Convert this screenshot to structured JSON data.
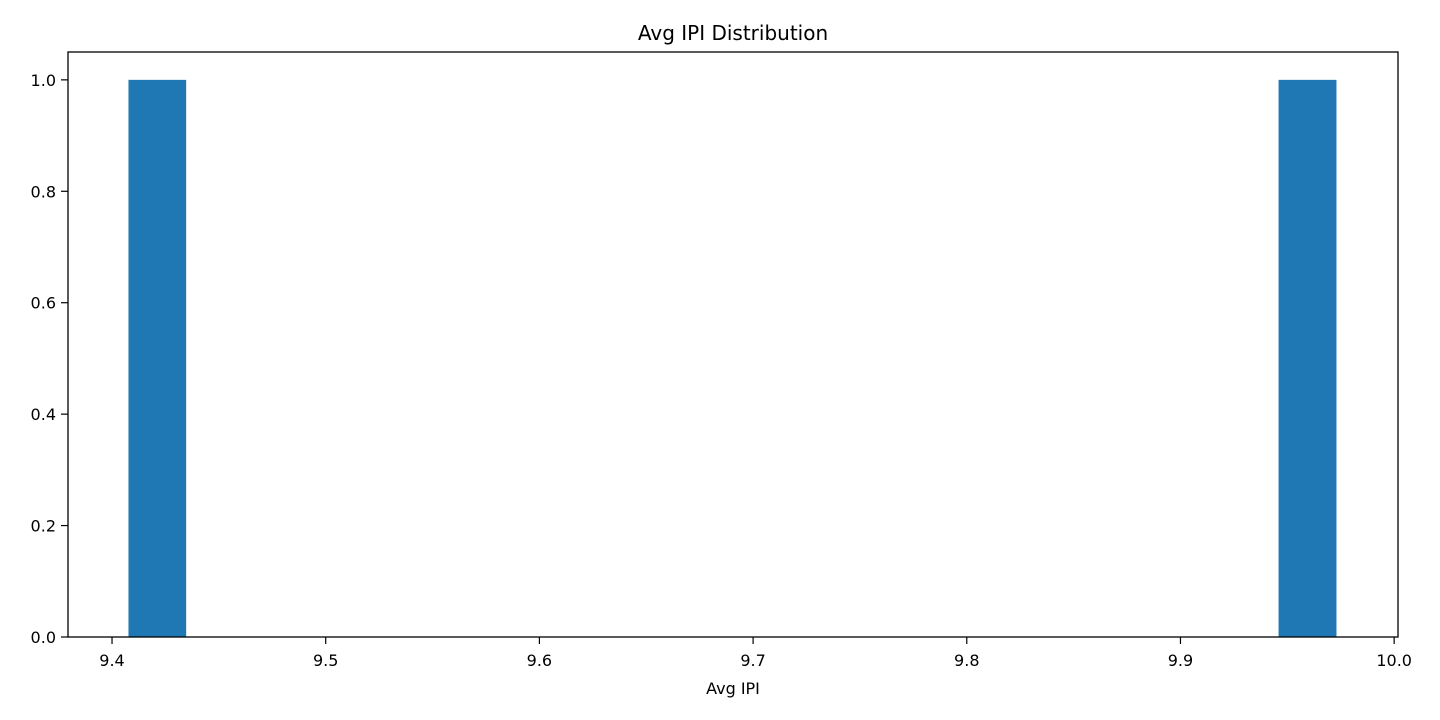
{
  "chart_data": {
    "type": "bar",
    "title": "Avg IPI Distribution",
    "xlabel": "Avg IPI",
    "ylabel": "",
    "xlim": [
      9.3794,
      10.0018
    ],
    "ylim": [
      0,
      1.05
    ],
    "xticks": [
      "9.4",
      "9.5",
      "9.6",
      "9.7",
      "9.8",
      "9.9",
      "10.0"
    ],
    "yticks": [
      "0.0",
      "0.2",
      "0.4",
      "0.6",
      "0.8",
      "1.0"
    ],
    "bins": [
      {
        "x0": 9.4077,
        "x1": 9.4347,
        "value": 1
      },
      {
        "x0": 9.9459,
        "x1": 9.973,
        "value": 1
      }
    ],
    "bar_color": "#1f77b4",
    "grid": false,
    "legend": "none"
  }
}
